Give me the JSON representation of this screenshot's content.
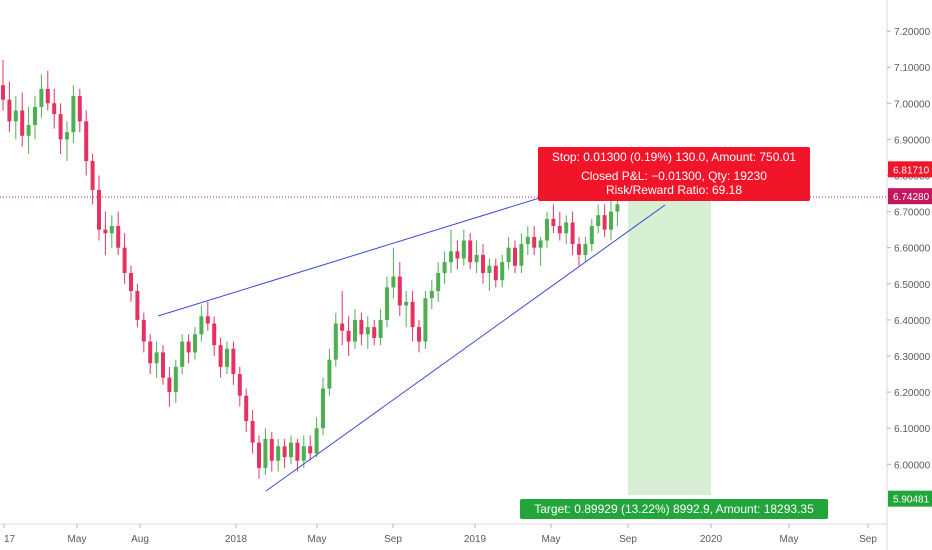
{
  "colors": {
    "up": "#4caf50",
    "down": "#e63163",
    "trendline": "#3d47d8",
    "stop_box": "#f2152a",
    "target_box": "#22a53a",
    "price_line": "#c2185b",
    "target_zone": "#d6efd3",
    "axis": "#555a66"
  },
  "chart_data": {
    "type": "candlestick",
    "interval": "weekly",
    "price_scale": {
      "ticks": [
        "7.20000",
        "7.10000",
        "7.00000",
        "6.90000",
        "6.80000",
        "6.70000",
        "6.60000",
        "6.50000",
        "6.40000",
        "6.30000",
        "6.20000",
        "6.10000",
        "6.00000"
      ],
      "range": [
        5.86,
        7.3
      ]
    },
    "time_axis": {
      "labels": [
        "17",
        "May",
        "Aug",
        "2018",
        "May",
        "Sep",
        "2019",
        "May",
        "Sep",
        "2020",
        "May",
        "Sep"
      ]
    },
    "price_tags": [
      {
        "label": "6.81710",
        "value": 6.8171,
        "color": "#f2152a"
      },
      {
        "label": "6.74280",
        "value": 6.7428,
        "color": "#c2185b"
      },
      {
        "label": "5.90481",
        "value": 5.90481,
        "color": "#22a53a"
      }
    ],
    "candles": [
      {
        "o": 7.05,
        "h": 7.12,
        "l": 6.98,
        "c": 7.01
      },
      {
        "o": 7.01,
        "h": 7.06,
        "l": 6.92,
        "c": 6.95
      },
      {
        "o": 6.95,
        "h": 7.02,
        "l": 6.9,
        "c": 6.98
      },
      {
        "o": 6.98,
        "h": 7.03,
        "l": 6.88,
        "c": 6.91
      },
      {
        "o": 6.91,
        "h": 6.99,
        "l": 6.86,
        "c": 6.94
      },
      {
        "o": 6.94,
        "h": 7.02,
        "l": 6.9,
        "c": 6.99
      },
      {
        "o": 6.99,
        "h": 7.08,
        "l": 6.96,
        "c": 7.04
      },
      {
        "o": 7.04,
        "h": 7.09,
        "l": 6.98,
        "c": 7.0
      },
      {
        "o": 7.0,
        "h": 7.04,
        "l": 6.93,
        "c": 6.97
      },
      {
        "o": 6.97,
        "h": 7.0,
        "l": 6.86,
        "c": 6.9
      },
      {
        "o": 6.9,
        "h": 6.95,
        "l": 6.84,
        "c": 6.92
      },
      {
        "o": 6.92,
        "h": 7.05,
        "l": 6.89,
        "c": 7.02
      },
      {
        "o": 7.02,
        "h": 7.04,
        "l": 6.92,
        "c": 6.95
      },
      {
        "o": 6.95,
        "h": 6.98,
        "l": 6.8,
        "c": 6.84
      },
      {
        "o": 6.84,
        "h": 6.86,
        "l": 6.72,
        "c": 6.76
      },
      {
        "o": 6.76,
        "h": 6.8,
        "l": 6.62,
        "c": 6.65
      },
      {
        "o": 6.65,
        "h": 6.7,
        "l": 6.58,
        "c": 6.64
      },
      {
        "o": 6.64,
        "h": 6.69,
        "l": 6.6,
        "c": 6.66
      },
      {
        "o": 6.66,
        "h": 6.7,
        "l": 6.58,
        "c": 6.6
      },
      {
        "o": 6.6,
        "h": 6.64,
        "l": 6.5,
        "c": 6.53
      },
      {
        "o": 6.53,
        "h": 6.55,
        "l": 6.45,
        "c": 6.48
      },
      {
        "o": 6.48,
        "h": 6.5,
        "l": 6.38,
        "c": 6.4
      },
      {
        "o": 6.4,
        "h": 6.42,
        "l": 6.31,
        "c": 6.34
      },
      {
        "o": 6.34,
        "h": 6.36,
        "l": 6.25,
        "c": 6.28
      },
      {
        "o": 6.28,
        "h": 6.34,
        "l": 6.24,
        "c": 6.31
      },
      {
        "o": 6.31,
        "h": 6.33,
        "l": 6.22,
        "c": 6.24
      },
      {
        "o": 6.24,
        "h": 6.27,
        "l": 6.16,
        "c": 6.2
      },
      {
        "o": 6.2,
        "h": 6.29,
        "l": 6.17,
        "c": 6.27
      },
      {
        "o": 6.27,
        "h": 6.36,
        "l": 6.25,
        "c": 6.34
      },
      {
        "o": 6.34,
        "h": 6.36,
        "l": 6.28,
        "c": 6.31
      },
      {
        "o": 6.31,
        "h": 6.38,
        "l": 6.29,
        "c": 6.36
      },
      {
        "o": 6.36,
        "h": 6.44,
        "l": 6.34,
        "c": 6.41
      },
      {
        "o": 6.41,
        "h": 6.45,
        "l": 6.37,
        "c": 6.39
      },
      {
        "o": 6.39,
        "h": 6.41,
        "l": 6.3,
        "c": 6.33
      },
      {
        "o": 6.33,
        "h": 6.35,
        "l": 6.24,
        "c": 6.27
      },
      {
        "o": 6.27,
        "h": 6.34,
        "l": 6.25,
        "c": 6.32
      },
      {
        "o": 6.32,
        "h": 6.34,
        "l": 6.22,
        "c": 6.25
      },
      {
        "o": 6.25,
        "h": 6.27,
        "l": 6.16,
        "c": 6.19
      },
      {
        "o": 6.19,
        "h": 6.21,
        "l": 6.09,
        "c": 6.12
      },
      {
        "o": 6.12,
        "h": 6.15,
        "l": 6.03,
        "c": 6.06
      },
      {
        "o": 6.06,
        "h": 6.08,
        "l": 5.96,
        "c": 5.99
      },
      {
        "o": 5.99,
        "h": 6.1,
        "l": 5.97,
        "c": 6.07
      },
      {
        "o": 6.07,
        "h": 6.09,
        "l": 5.98,
        "c": 6.01
      },
      {
        "o": 6.01,
        "h": 6.07,
        "l": 5.98,
        "c": 6.05
      },
      {
        "o": 6.05,
        "h": 6.07,
        "l": 5.99,
        "c": 6.02
      },
      {
        "o": 6.02,
        "h": 6.08,
        "l": 6.0,
        "c": 6.06
      },
      {
        "o": 6.06,
        "h": 6.07,
        "l": 5.98,
        "c": 6.01
      },
      {
        "o": 6.01,
        "h": 6.08,
        "l": 5.99,
        "c": 6.05
      },
      {
        "o": 6.05,
        "h": 6.08,
        "l": 6.01,
        "c": 6.03
      },
      {
        "o": 6.03,
        "h": 6.13,
        "l": 6.02,
        "c": 6.1
      },
      {
        "o": 6.1,
        "h": 6.24,
        "l": 6.08,
        "c": 6.21
      },
      {
        "o": 6.21,
        "h": 6.32,
        "l": 6.19,
        "c": 6.29
      },
      {
        "o": 6.29,
        "h": 6.42,
        "l": 6.27,
        "c": 6.39
      },
      {
        "o": 6.39,
        "h": 6.48,
        "l": 6.33,
        "c": 6.37
      },
      {
        "o": 6.37,
        "h": 6.41,
        "l": 6.3,
        "c": 6.34
      },
      {
        "o": 6.34,
        "h": 6.43,
        "l": 6.32,
        "c": 6.4
      },
      {
        "o": 6.4,
        "h": 6.42,
        "l": 6.33,
        "c": 6.36
      },
      {
        "o": 6.36,
        "h": 6.41,
        "l": 6.32,
        "c": 6.38
      },
      {
        "o": 6.38,
        "h": 6.4,
        "l": 6.33,
        "c": 6.35
      },
      {
        "o": 6.35,
        "h": 6.43,
        "l": 6.33,
        "c": 6.4
      },
      {
        "o": 6.4,
        "h": 6.52,
        "l": 6.38,
        "c": 6.49
      },
      {
        "o": 6.49,
        "h": 6.6,
        "l": 6.46,
        "c": 6.52
      },
      {
        "o": 6.52,
        "h": 6.56,
        "l": 6.41,
        "c": 6.44
      },
      {
        "o": 6.44,
        "h": 6.48,
        "l": 6.38,
        "c": 6.45
      },
      {
        "o": 6.45,
        "h": 6.48,
        "l": 6.34,
        "c": 6.38
      },
      {
        "o": 6.38,
        "h": 6.4,
        "l": 6.31,
        "c": 6.34
      },
      {
        "o": 6.34,
        "h": 6.48,
        "l": 6.32,
        "c": 6.46
      },
      {
        "o": 6.46,
        "h": 6.51,
        "l": 6.43,
        "c": 6.48
      },
      {
        "o": 6.48,
        "h": 6.56,
        "l": 6.45,
        "c": 6.53
      },
      {
        "o": 6.53,
        "h": 6.59,
        "l": 6.5,
        "c": 6.56
      },
      {
        "o": 6.56,
        "h": 6.65,
        "l": 6.53,
        "c": 6.59
      },
      {
        "o": 6.59,
        "h": 6.62,
        "l": 6.54,
        "c": 6.57
      },
      {
        "o": 6.57,
        "h": 6.65,
        "l": 6.55,
        "c": 6.62
      },
      {
        "o": 6.62,
        "h": 6.64,
        "l": 6.54,
        "c": 6.56
      },
      {
        "o": 6.56,
        "h": 6.62,
        "l": 6.53,
        "c": 6.58
      },
      {
        "o": 6.58,
        "h": 6.61,
        "l": 6.5,
        "c": 6.53
      },
      {
        "o": 6.53,
        "h": 6.57,
        "l": 6.48,
        "c": 6.55
      },
      {
        "o": 6.55,
        "h": 6.57,
        "l": 6.49,
        "c": 6.51
      },
      {
        "o": 6.51,
        "h": 6.58,
        "l": 6.49,
        "c": 6.56
      },
      {
        "o": 6.56,
        "h": 6.63,
        "l": 6.54,
        "c": 6.6
      },
      {
        "o": 6.6,
        "h": 6.62,
        "l": 6.53,
        "c": 6.55
      },
      {
        "o": 6.55,
        "h": 6.64,
        "l": 6.53,
        "c": 6.61
      },
      {
        "o": 6.61,
        "h": 6.66,
        "l": 6.58,
        "c": 6.63
      },
      {
        "o": 6.63,
        "h": 6.66,
        "l": 6.58,
        "c": 6.6
      },
      {
        "o": 6.6,
        "h": 6.63,
        "l": 6.55,
        "c": 6.62
      },
      {
        "o": 6.62,
        "h": 6.7,
        "l": 6.6,
        "c": 6.68
      },
      {
        "o": 6.68,
        "h": 6.72,
        "l": 6.64,
        "c": 6.66
      },
      {
        "o": 6.66,
        "h": 6.7,
        "l": 6.62,
        "c": 6.64
      },
      {
        "o": 6.64,
        "h": 6.69,
        "l": 6.61,
        "c": 6.67
      },
      {
        "o": 6.67,
        "h": 6.7,
        "l": 6.58,
        "c": 6.61
      },
      {
        "o": 6.61,
        "h": 6.63,
        "l": 6.55,
        "c": 6.58
      },
      {
        "o": 6.58,
        "h": 6.63,
        "l": 6.56,
        "c": 6.61
      },
      {
        "o": 6.61,
        "h": 6.68,
        "l": 6.59,
        "c": 6.66
      },
      {
        "o": 6.66,
        "h": 6.72,
        "l": 6.64,
        "c": 6.69
      },
      {
        "o": 6.69,
        "h": 6.72,
        "l": 6.63,
        "c": 6.65
      },
      {
        "o": 6.65,
        "h": 6.73,
        "l": 6.62,
        "c": 6.7
      },
      {
        "o": 6.7,
        "h": 6.74,
        "l": 6.66,
        "c": 6.72
      }
    ]
  },
  "risk_box": {
    "stop_label": "Stop: 0.01300 (0.19%) 130.0, Amount: 750.01",
    "pnl_label": "Closed P&L: −0.01300, Qty: 19230",
    "rr_label": "Risk/Reward Ratio: 69.18",
    "target_label": "Target: 0.89929 (13.22%) 8992.9, Amount: 18293.35"
  }
}
